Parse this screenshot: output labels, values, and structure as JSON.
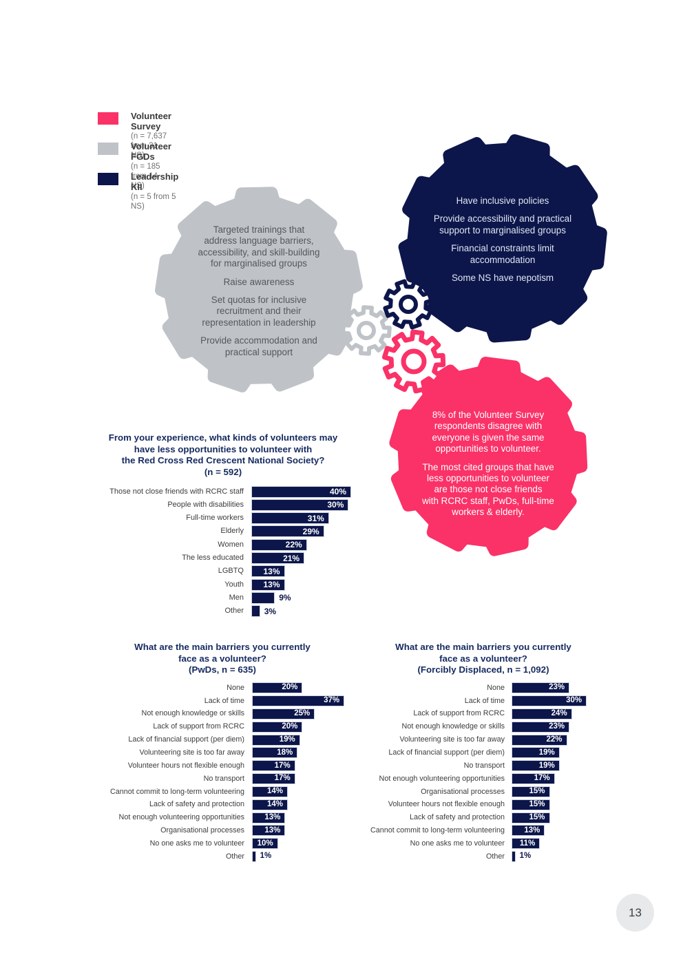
{
  "colors": {
    "pink": "#fa3267",
    "gray": "#bfc3c8",
    "navy": "#0c164a",
    "title_navy": "#152a5f"
  },
  "legend": {
    "items": [
      {
        "label": "Volunteer Survey",
        "sub": "(n = 7,637 from 31 NS)",
        "color": "#fa3267"
      },
      {
        "label": "Volunteer FGDs",
        "sub": "(n = 185 from 14 NS)",
        "color": "#bfc3c8"
      },
      {
        "label": "Leadership KII",
        "sub": "(n = 5 from 5 NS)",
        "color": "#0c164a"
      }
    ]
  },
  "bubbles": {
    "fgd": {
      "paragraphs": [
        "Targeted trainings that\naddress language barriers,\naccessibility, and skill-building\nfor marginalised groups",
        "Raise awareness",
        "Set quotas for inclusive\nrecruitment and their\nrepresentation in leadership",
        "Provide accommodation and\npractical support"
      ]
    },
    "kii": {
      "paragraphs": [
        "Have inclusive policies",
        "Provide accessibility and practical\nsupport to marginalised groups",
        "Financial constraints limit\naccommodation",
        "Some NS have nepotism"
      ]
    },
    "survey": {
      "paragraphs": [
        "8% of the Volunteer Survey\nrespondents disagree with\neveryone is given the same\nopportunities to volunteer.",
        "The most cited groups that have\nless opportunities to volunteer\nare those not close friends\nwith RCRC staff, PwDs, full-time\nworkers & elderly."
      ]
    }
  },
  "chart_data": [
    {
      "type": "bar",
      "unit": "%",
      "title_lines": [
        "From your experience, what kinds of volunteers may",
        "have less opportunities to volunteer with",
        "the Red Cross Red Crescent National Society?",
        "(n = 592)"
      ],
      "items": [
        {
          "label": "Those not close friends with RCRC staff",
          "value": 40,
          "display": "40%"
        },
        {
          "label": "People with disabilities",
          "value": 30,
          "display": "30%",
          "bar_pct": 39
        },
        {
          "label": "Full-time workers",
          "value": 31,
          "display": "31%"
        },
        {
          "label": "Elderly",
          "value": 29,
          "display": "29%"
        },
        {
          "label": "Women",
          "value": 22,
          "display": "22%"
        },
        {
          "label": "The less educated",
          "value": 21,
          "display": "21%"
        },
        {
          "label": "LGBTQ",
          "value": 13,
          "display": "13%"
        },
        {
          "label": "Youth",
          "value": 13,
          "display": "13%"
        },
        {
          "label": "Men",
          "value": 9,
          "display": "9%"
        },
        {
          "label": "Other",
          "value": 3,
          "display": "3%"
        }
      ]
    },
    {
      "type": "bar",
      "unit": "%",
      "title_lines": [
        "What are the main barriers you currently",
        "face as a volunteer?",
        "(PwDs, n = 635)"
      ],
      "items": [
        {
          "label": "None",
          "value": 20,
          "display": "20%"
        },
        {
          "label": "Lack of time",
          "value": 37,
          "display": "37%"
        },
        {
          "label": "Not enough knowledge or skills",
          "value": 25,
          "display": "25%"
        },
        {
          "label": "Lack of support from RCRC",
          "value": 20,
          "display": "20%"
        },
        {
          "label": "Lack of financial support (per diem)",
          "value": 19,
          "display": "19%"
        },
        {
          "label": "Volunteering site is too far away",
          "value": 18,
          "display": "18%"
        },
        {
          "label": "Volunteer hours not flexible enough",
          "value": 17,
          "display": "17%"
        },
        {
          "label": "No transport",
          "value": 17,
          "display": "17%"
        },
        {
          "label": "Cannot commit to long-term volunteering",
          "value": 14,
          "display": "14%"
        },
        {
          "label": "Lack of safety and protection",
          "value": 14,
          "display": "14%"
        },
        {
          "label": "Not enough volunteering opportunities",
          "value": 13,
          "display": "13%"
        },
        {
          "label": "Organisational processes",
          "value": 13,
          "display": "13%"
        },
        {
          "label": "No one asks me to volunteer",
          "value": 10,
          "display": "10%"
        },
        {
          "label": "Other",
          "value": 1,
          "display": "1%"
        }
      ]
    },
    {
      "type": "bar",
      "unit": "%",
      "title_lines": [
        "What are the main barriers you currently",
        "face as a volunteer?",
        "(Forcibly Displaced, n = 1,092)"
      ],
      "items": [
        {
          "label": "None",
          "value": 23,
          "display": "23%"
        },
        {
          "label": "Lack of time",
          "value": 30,
          "display": "30%"
        },
        {
          "label": "Lack of support from RCRC",
          "value": 24,
          "display": "24%"
        },
        {
          "label": "Not enough knowledge or skills",
          "value": 23,
          "display": "23%"
        },
        {
          "label": "Volunteering site is too far away",
          "value": 22,
          "display": "22%"
        },
        {
          "label": "Lack of financial support (per diem)",
          "value": 19,
          "display": "19%"
        },
        {
          "label": "No transport",
          "value": 19,
          "display": "19%"
        },
        {
          "label": "Not enough volunteering opportunities",
          "value": 17,
          "display": "17%"
        },
        {
          "label": "Organisational processes",
          "value": 15,
          "display": "15%"
        },
        {
          "label": "Volunteer hours not flexible enough",
          "value": 15,
          "display": "15%"
        },
        {
          "label": "Lack of safety and protection",
          "value": 15,
          "display": "15%"
        },
        {
          "label": "Cannot commit to long-term volunteering",
          "value": 13,
          "display": "13%"
        },
        {
          "label": "No one asks me to volunteer",
          "value": 11,
          "display": "11%"
        },
        {
          "label": "Other",
          "value": 1,
          "display": "1%"
        }
      ]
    }
  ],
  "page_number": "13"
}
